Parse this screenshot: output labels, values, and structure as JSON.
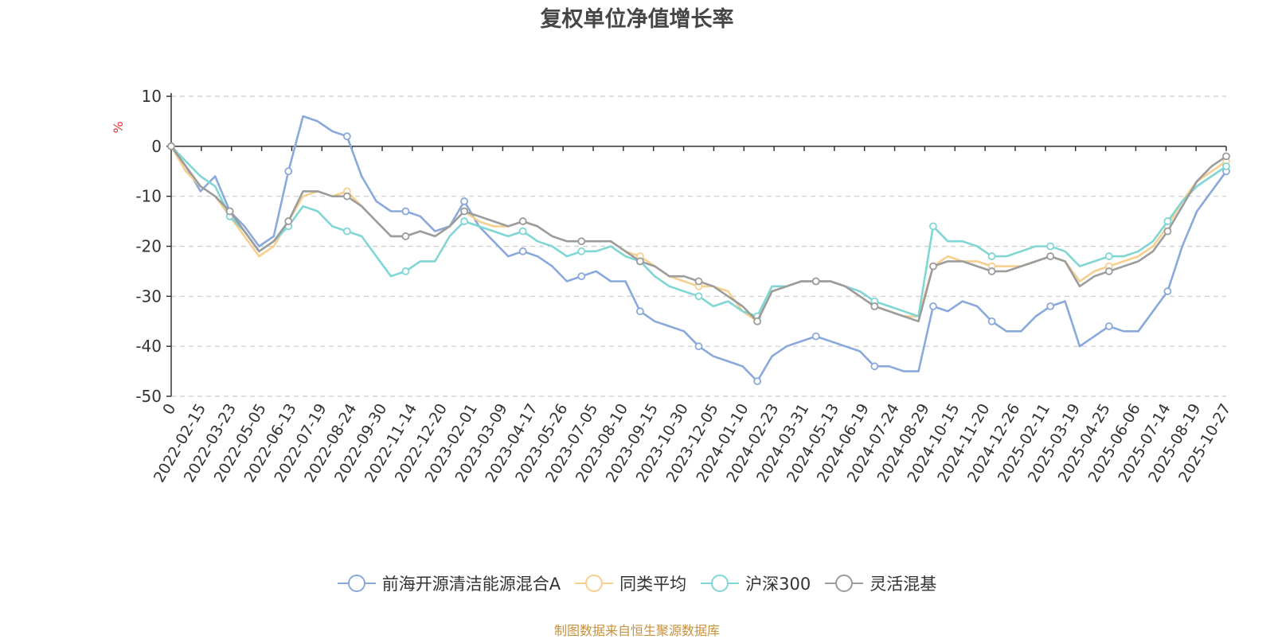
{
  "chart_data": {
    "type": "line",
    "title": "复权单位净值增长率",
    "ylabel": "%",
    "ylim": [
      -50,
      10
    ],
    "yticks": [
      10,
      0,
      -10,
      -20,
      -30,
      -40,
      -50
    ],
    "grid": true,
    "legend_position": "bottom",
    "x_tick_labels": [
      "0",
      "2022-02-15",
      "2022-03-23",
      "2022-05-05",
      "2022-06-13",
      "2022-07-19",
      "2022-08-24",
      "2022-09-30",
      "2022-11-14",
      "2022-12-20",
      "2023-02-01",
      "2023-03-09",
      "2023-04-17",
      "2023-05-26",
      "2023-07-05",
      "2023-08-10",
      "2023-09-15",
      "2023-10-30",
      "2023-12-05",
      "2024-01-10",
      "2024-02-23",
      "2024-03-31",
      "2024-05-13",
      "2024-06-19",
      "2024-07-24",
      "2024-08-29",
      "2024-10-15",
      "2024-11-20",
      "2024-12-26",
      "2025-02-11",
      "2025-03-19",
      "2025-04-25",
      "2025-06-06",
      "2025-07-14",
      "2025-08-19",
      "2025-10-27"
    ],
    "x": [
      "2022-01-04",
      "2022-01-25",
      "2022-02-15",
      "2022-03-04",
      "2022-03-23",
      "2022-04-14",
      "2022-05-05",
      "2022-05-24",
      "2022-06-13",
      "2022-06-30",
      "2022-07-19",
      "2022-08-05",
      "2022-08-24",
      "2022-09-12",
      "2022-09-30",
      "2022-10-24",
      "2022-11-14",
      "2022-12-01",
      "2022-12-20",
      "2023-01-10",
      "2023-02-01",
      "2023-02-20",
      "2023-03-09",
      "2023-03-28",
      "2023-04-17",
      "2023-05-08",
      "2023-05-26",
      "2023-06-15",
      "2023-07-05",
      "2023-07-24",
      "2023-08-10",
      "2023-08-29",
      "2023-09-15",
      "2023-10-12",
      "2023-10-30",
      "2023-11-16",
      "2023-12-05",
      "2023-12-22",
      "2024-01-10",
      "2024-01-31",
      "2024-02-23",
      "2024-03-13",
      "2024-03-31",
      "2024-04-23",
      "2024-05-13",
      "2024-05-31",
      "2024-06-19",
      "2024-07-05",
      "2024-07-24",
      "2024-08-12",
      "2024-08-29",
      "2024-09-23",
      "2024-10-15",
      "2024-11-01",
      "2024-11-20",
      "2024-12-09",
      "2024-12-26",
      "2025-01-17",
      "2025-02-11",
      "2025-02-28",
      "2025-03-19",
      "2025-04-08",
      "2025-04-25",
      "2025-05-19",
      "2025-06-06",
      "2025-06-25",
      "2025-07-14",
      "2025-07-31",
      "2025-08-19",
      "2025-09-05",
      "2025-09-25",
      "2025-10-13",
      "2025-10-27"
    ],
    "series": [
      {
        "name": "前海开源清洁能源混合A",
        "color": "#8aa9db",
        "values": [
          0,
          -4,
          -9,
          -6,
          -13,
          -16,
          -20,
          -18,
          -5,
          6,
          5,
          3,
          2,
          -6,
          -11,
          -13,
          -13,
          -14,
          -17,
          -16,
          -11,
          -16,
          -19,
          -22,
          -21,
          -22,
          -24,
          -27,
          -26,
          -25,
          -27,
          -27,
          -33,
          -35,
          -36,
          -37,
          -40,
          -42,
          -43,
          -44,
          -47,
          -42,
          -40,
          -39,
          -38,
          -39,
          -40,
          -41,
          -44,
          -44,
          -45,
          -45,
          -32,
          -33,
          -31,
          -32,
          -35,
          -37,
          -37,
          -34,
          -32,
          -31,
          -40,
          -38,
          -36,
          -37,
          -37,
          -33,
          -29,
          -20,
          -13,
          -9,
          -5
        ]
      },
      {
        "name": "同类平均",
        "color": "#f7cf8e",
        "values": [
          0,
          -5,
          -8,
          -10,
          -14,
          -18,
          -22,
          -20,
          -15,
          -10,
          -9,
          -10,
          -9,
          -12,
          -15,
          -18,
          -18,
          -17,
          -18,
          -16,
          -13,
          -15,
          -16,
          -16,
          -15,
          -16,
          -18,
          -19,
          -19,
          -19,
          -19,
          -21,
          -22,
          -24,
          -26,
          -27,
          -28,
          -28,
          -29,
          -33,
          -35,
          -29,
          -28,
          -27,
          -27,
          -27,
          -28,
          -30,
          -32,
          -33,
          -34,
          -34,
          -24,
          -22,
          -23,
          -23,
          -24,
          -24,
          -24,
          -23,
          -22,
          -23,
          -27,
          -25,
          -24,
          -23,
          -22,
          -20,
          -16,
          -11,
          -7,
          -5,
          -3
        ]
      },
      {
        "name": "沪深300",
        "color": "#80d6d4",
        "values": [
          0,
          -3,
          -6,
          -8,
          -14,
          -17,
          -21,
          -19,
          -16,
          -12,
          -13,
          -16,
          -17,
          -18,
          -22,
          -26,
          -25,
          -23,
          -23,
          -18,
          -15,
          -16,
          -17,
          -18,
          -17,
          -19,
          -20,
          -22,
          -21,
          -21,
          -20,
          -22,
          -23,
          -26,
          -28,
          -29,
          -30,
          -32,
          -31,
          -33,
          -34,
          -28,
          -28,
          -27,
          -27,
          -27,
          -28,
          -29,
          -31,
          -32,
          -33,
          -34,
          -16,
          -19,
          -19,
          -20,
          -22,
          -22,
          -21,
          -20,
          -20,
          -21,
          -24,
          -23,
          -22,
          -22,
          -21,
          -19,
          -15,
          -11,
          -8,
          -6,
          -4
        ]
      },
      {
        "name": "灵活混基",
        "color": "#9c9c9c",
        "values": [
          0,
          -4,
          -8,
          -10,
          -13,
          -17,
          -21,
          -19,
          -15,
          -9,
          -9,
          -10,
          -10,
          -12,
          -15,
          -18,
          -18,
          -17,
          -18,
          -16,
          -13,
          -14,
          -15,
          -16,
          -15,
          -16,
          -18,
          -19,
          -19,
          -19,
          -19,
          -21,
          -23,
          -24,
          -26,
          -26,
          -27,
          -28,
          -30,
          -32,
          -35,
          -29,
          -28,
          -27,
          -27,
          -27,
          -28,
          -30,
          -32,
          -33,
          -34,
          -35,
          -24,
          -23,
          -23,
          -24,
          -25,
          -25,
          -24,
          -23,
          -22,
          -23,
          -28,
          -26,
          -25,
          -24,
          -23,
          -21,
          -17,
          -12,
          -7,
          -4,
          -2
        ]
      }
    ]
  },
  "footer": "制图数据来自恒生聚源数据库"
}
